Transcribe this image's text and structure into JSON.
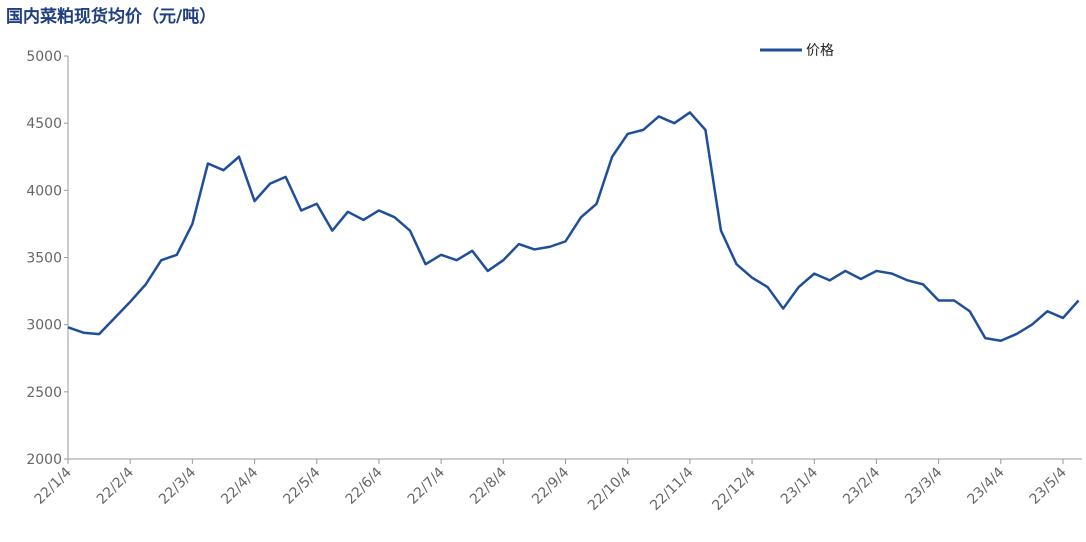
{
  "chart_data": {
    "type": "line",
    "title": "国内菜粕现货均价（元/吨）",
    "categories": [
      "22/1/4",
      null,
      null,
      null,
      "22/2/4",
      null,
      null,
      null,
      "22/3/4",
      null,
      null,
      null,
      "22/4/4",
      null,
      null,
      null,
      "22/5/4",
      null,
      null,
      null,
      "22/6/4",
      null,
      null,
      null,
      "22/7/4",
      null,
      null,
      null,
      "22/8/4",
      null,
      null,
      null,
      "22/9/4",
      null,
      null,
      null,
      "22/10/4",
      null,
      null,
      null,
      "22/11/4",
      null,
      null,
      null,
      "22/12/4",
      null,
      null,
      null,
      "23/1/4",
      null,
      null,
      null,
      "23/2/4",
      null,
      null,
      null,
      "23/3/4",
      null,
      null,
      null,
      "23/4/4",
      null,
      null,
      null,
      "23/5/4",
      null
    ],
    "series": [
      {
        "name": "价格",
        "color": "#1f4e9a",
        "values": [
          2980,
          2940,
          2930,
          3050,
          3170,
          3300,
          3480,
          3520,
          3750,
          4200,
          4150,
          4250,
          3920,
          4050,
          4100,
          3850,
          3900,
          3700,
          3840,
          3780,
          3850,
          3800,
          3700,
          3450,
          3520,
          3480,
          3550,
          3400,
          3480,
          3600,
          3560,
          3580,
          3620,
          3800,
          3900,
          4250,
          4420,
          4450,
          4550,
          4500,
          4580,
          4450,
          3700,
          3450,
          3350,
          3280,
          3120,
          3280,
          3380,
          3330,
          3400,
          3340,
          3400,
          3380,
          3330,
          3300,
          3180,
          3180,
          3100,
          2900,
          2880,
          2930,
          3000,
          3100,
          3050,
          3180
        ]
      }
    ],
    "ylim": [
      2000,
      5000
    ],
    "yticks": [
      2000,
      2500,
      3000,
      3500,
      4000,
      4500,
      5000
    ],
    "legend": "top-right"
  }
}
